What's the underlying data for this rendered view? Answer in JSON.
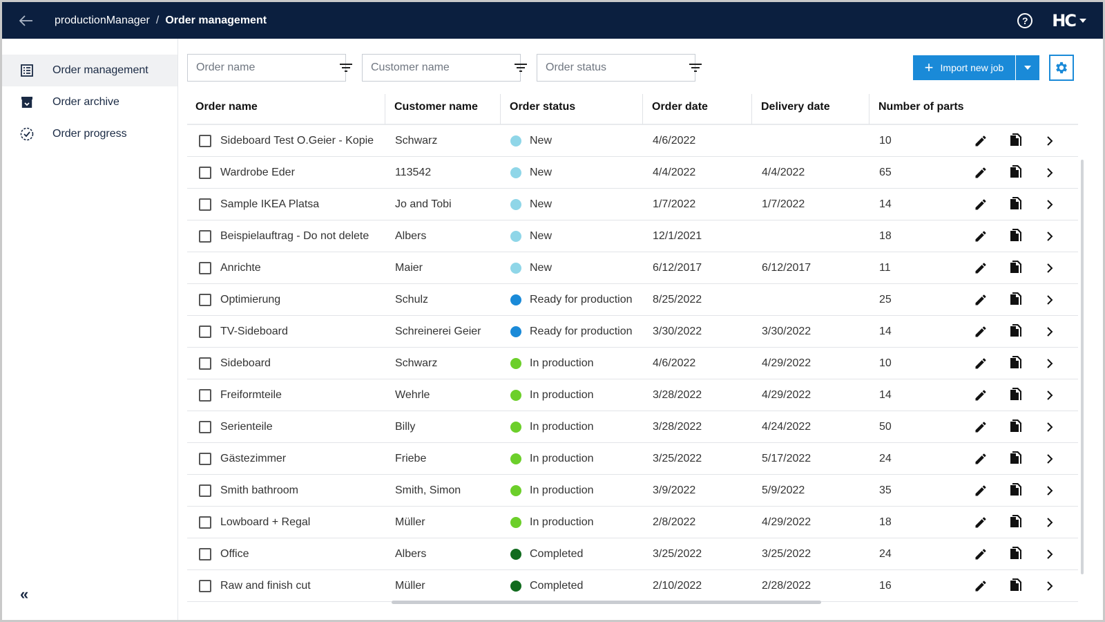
{
  "header": {
    "app": "productionManager",
    "separator": "/",
    "page": "Order management",
    "help_label": "?",
    "logo_text": "HC"
  },
  "sidebar": {
    "items": [
      {
        "label": "Order management",
        "icon": "list-icon",
        "active": true
      },
      {
        "label": "Order archive",
        "icon": "archive-icon",
        "active": false
      },
      {
        "label": "Order progress",
        "icon": "progress-icon",
        "active": false
      }
    ],
    "collapse_label": "«"
  },
  "filters": {
    "order_name_placeholder": "Order name",
    "customer_name_placeholder": "Customer name",
    "order_status_placeholder": "Order status"
  },
  "toolbar": {
    "import_label": "Import new job",
    "import_plus": "+",
    "accent_color": "#1a8ad8"
  },
  "table": {
    "columns": [
      "Order name",
      "Customer name",
      "Order status",
      "Order date",
      "Delivery date",
      "Number of parts"
    ],
    "status_colors": {
      "New": "#8fd6e8",
      "Ready for production": "#1a8ad8",
      "In production": "#6ccf2a",
      "Completed": "#116b1e"
    },
    "rows": [
      {
        "name": "Sideboard Test O.Geier - Kopie",
        "customer": "Schwarz",
        "status": "New",
        "order_date": "4/6/2022",
        "delivery_date": "",
        "parts": "10"
      },
      {
        "name": "Wardrobe Eder",
        "customer": "113542",
        "status": "New",
        "order_date": "4/4/2022",
        "delivery_date": "4/4/2022",
        "parts": "65"
      },
      {
        "name": "Sample IKEA Platsa",
        "customer": "Jo and Tobi",
        "status": "New",
        "order_date": "1/7/2022",
        "delivery_date": "1/7/2022",
        "parts": "14"
      },
      {
        "name": "Beispielauftrag - Do not delete",
        "customer": "Albers",
        "status": "New",
        "order_date": "12/1/2021",
        "delivery_date": "",
        "parts": "18"
      },
      {
        "name": "Anrichte",
        "customer": "Maier",
        "status": "New",
        "order_date": "6/12/2017",
        "delivery_date": "6/12/2017",
        "parts": "11"
      },
      {
        "name": "Optimierung",
        "customer": "Schulz",
        "status": "Ready for production",
        "order_date": "8/25/2022",
        "delivery_date": "",
        "parts": "25"
      },
      {
        "name": "TV-Sideboard",
        "customer": "Schreinerei Geier",
        "status": "Ready for production",
        "order_date": "3/30/2022",
        "delivery_date": "3/30/2022",
        "parts": "14"
      },
      {
        "name": "Sideboard",
        "customer": "Schwarz",
        "status": "In production",
        "order_date": "4/6/2022",
        "delivery_date": "4/29/2022",
        "parts": "10"
      },
      {
        "name": "Freiformteile",
        "customer": "Wehrle",
        "status": "In production",
        "order_date": "3/28/2022",
        "delivery_date": "4/29/2022",
        "parts": "14"
      },
      {
        "name": "Serienteile",
        "customer": "Billy",
        "status": "In production",
        "order_date": "3/28/2022",
        "delivery_date": "4/24/2022",
        "parts": "50"
      },
      {
        "name": "Gästezimmer",
        "customer": "Friebe",
        "status": "In production",
        "order_date": "3/25/2022",
        "delivery_date": "5/17/2022",
        "parts": "24"
      },
      {
        "name": "Smith bathroom",
        "customer": "Smith, Simon",
        "status": "In production",
        "order_date": "3/9/2022",
        "delivery_date": "5/9/2022",
        "parts": "35"
      },
      {
        "name": "Lowboard + Regal",
        "customer": "Müller",
        "status": "In production",
        "order_date": "2/8/2022",
        "delivery_date": "4/29/2022",
        "parts": "18"
      },
      {
        "name": "Office",
        "customer": "Albers",
        "status": "Completed",
        "order_date": "3/25/2022",
        "delivery_date": "3/25/2022",
        "parts": "24"
      },
      {
        "name": "Raw and finish cut",
        "customer": "Müller",
        "status": "Completed",
        "order_date": "2/10/2022",
        "delivery_date": "2/28/2022",
        "parts": "16"
      }
    ]
  }
}
